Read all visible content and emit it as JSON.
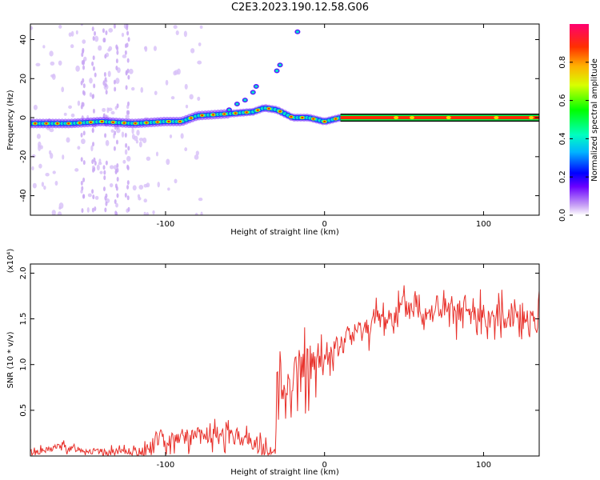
{
  "title": "C2E3.2023.190.12.58.G06",
  "chart_data": [
    {
      "type": "heatmap",
      "xlabel": "Height of straight line (km)",
      "ylabel": "Frequency (Hz)",
      "xlim": [
        -185,
        135
      ],
      "ylim": [
        -50,
        48
      ],
      "xticks": [
        -100,
        0,
        100
      ],
      "yticks": [
        40,
        20,
        0,
        -20,
        -40
      ],
      "colorbar": {
        "label": "Normalized spectral amplitude",
        "range": [
          0,
          1
        ],
        "ticks": [
          "0.0",
          "0.2",
          "0.4",
          "0.6",
          "0.8"
        ],
        "tick_values": [
          0,
          0.2,
          0.4,
          0.6,
          0.8
        ]
      },
      "ridge": [
        {
          "x": -185,
          "y": -3
        },
        {
          "x": -160,
          "y": -3
        },
        {
          "x": -140,
          "y": -2
        },
        {
          "x": -120,
          "y": -3
        },
        {
          "x": -100,
          "y": -2
        },
        {
          "x": -90,
          "y": -2
        },
        {
          "x": -80,
          "y": 1
        },
        {
          "x": -60,
          "y": 2
        },
        {
          "x": -45,
          "y": 3
        },
        {
          "x": -38,
          "y": 5
        },
        {
          "x": -30,
          "y": 4
        },
        {
          "x": -20,
          "y": 0
        },
        {
          "x": -10,
          "y": 0
        },
        {
          "x": -5,
          "y": -1
        },
        {
          "x": 0,
          "y": -2
        },
        {
          "x": 10,
          "y": 0
        },
        {
          "x": 135,
          "y": 0
        }
      ]
    },
    {
      "type": "line",
      "xlabel": "Height of straight line (km)",
      "ylabel": "SNR (10 * v/v)",
      "scale_label": "(x10⁴)",
      "xlim": [
        -185,
        135
      ],
      "ylim": [
        0,
        2.1
      ],
      "xticks": [
        -100,
        0,
        100
      ],
      "yticks": [
        0.5,
        1.0,
        1.5,
        2.0
      ],
      "color": "#e8322c",
      "series": [
        {
          "x": [
            -185,
            -175,
            -165,
            -160,
            -155,
            -150,
            -140,
            -130,
            -120,
            -110,
            -105,
            -100,
            -95,
            -90,
            -85,
            -80,
            -75,
            -70,
            -65,
            -60,
            -55,
            -50,
            -45,
            -40,
            -35,
            -31,
            -30,
            -28,
            -26,
            -24,
            -22,
            -20,
            -18,
            -15,
            -12,
            -10,
            -8,
            -5,
            -2,
            0,
            5,
            10,
            15,
            20,
            25,
            30,
            35,
            40,
            45,
            50,
            55,
            60,
            65,
            70,
            75,
            80,
            85,
            90,
            95,
            100,
            105,
            110,
            115,
            120,
            125,
            130,
            135
          ],
          "y": [
            0.04,
            0.06,
            0.12,
            0.07,
            0.08,
            0.06,
            0.04,
            0.04,
            0.05,
            0.08,
            0.18,
            0.16,
            0.2,
            0.22,
            0.2,
            0.24,
            0.2,
            0.22,
            0.25,
            0.2,
            0.22,
            0.18,
            0.14,
            0.08,
            0.05,
            0.04,
            0.75,
            0.65,
            0.8,
            0.7,
            0.85,
            0.9,
            0.95,
            0.85,
            1.0,
            0.95,
            1.05,
            1.0,
            1.1,
            1.05,
            1.15,
            1.2,
            1.3,
            1.35,
            1.4,
            1.45,
            1.5,
            1.52,
            1.55,
            1.6,
            1.62,
            1.6,
            1.58,
            1.6,
            1.58,
            1.55,
            1.55,
            1.57,
            1.52,
            1.55,
            1.5,
            1.55,
            1.52,
            1.55,
            1.55,
            1.5,
            1.53
          ]
        }
      ]
    }
  ]
}
